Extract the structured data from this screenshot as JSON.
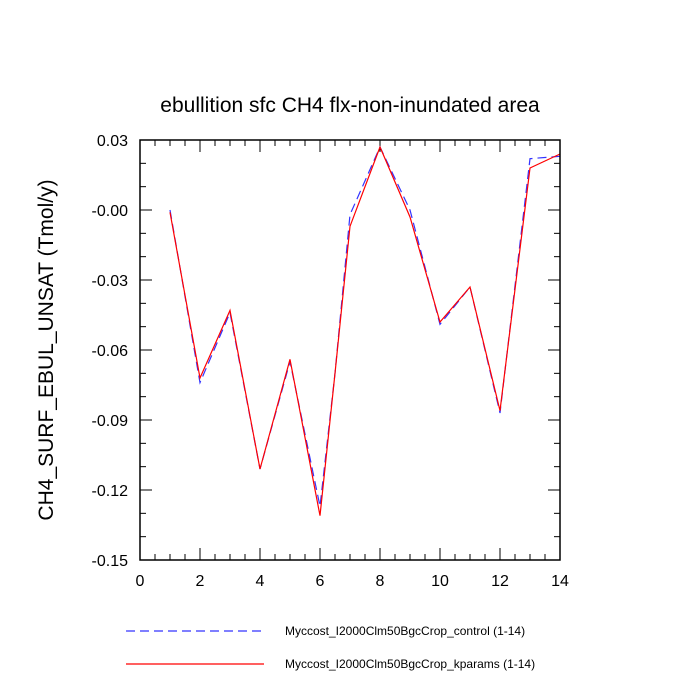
{
  "chart_data": {
    "type": "line",
    "title": "ebullition sfc CH4 flx-non-inundated area",
    "xlabel": "",
    "ylabel": "CH4_SURF_EBUL_UNSAT  (Tmol/y)",
    "xlim": [
      0,
      14
    ],
    "ylim": [
      -0.15,
      0.03
    ],
    "xticks": [
      0,
      2,
      4,
      6,
      8,
      10,
      12,
      14
    ],
    "xtick_labels": [
      "0",
      "2",
      "4",
      "6",
      "8",
      "10",
      "12",
      "14"
    ],
    "yticks": [
      -0.15,
      -0.12,
      -0.09,
      -0.06,
      -0.03,
      0.0,
      0.03
    ],
    "ytick_labels": [
      "-0.15",
      "-0.12",
      "-0.09",
      "-0.06",
      "-0.03",
      "-0.00",
      "0.03"
    ],
    "grid": false,
    "legend_position": "bottom",
    "series": [
      {
        "name": "Myccost_I2000Clm50BgcCrop_control (1-14)",
        "color": "#3333ff",
        "style": "dashed",
        "x": [
          1,
          2,
          3,
          4,
          5,
          6,
          6.5,
          7,
          8,
          9,
          10,
          11,
          12,
          13,
          14
        ],
        "y": [
          0.0,
          -0.074,
          -0.044,
          -0.111,
          -0.065,
          -0.127,
          -0.07,
          -0.002,
          0.027,
          0.0,
          -0.049,
          -0.033,
          -0.087,
          0.022,
          0.023
        ]
      },
      {
        "name": "Myccost_I2000Clm50BgcCrop_kparams (1-14)",
        "color": "#ff0000",
        "style": "solid",
        "x": [
          1,
          2,
          3,
          4,
          5,
          6,
          6.5,
          7,
          8,
          9,
          10,
          11,
          12,
          13,
          14
        ],
        "y": [
          -0.001,
          -0.072,
          -0.043,
          -0.111,
          -0.064,
          -0.131,
          -0.07,
          -0.007,
          0.027,
          -0.003,
          -0.048,
          -0.033,
          -0.086,
          0.018,
          0.024
        ]
      }
    ]
  }
}
